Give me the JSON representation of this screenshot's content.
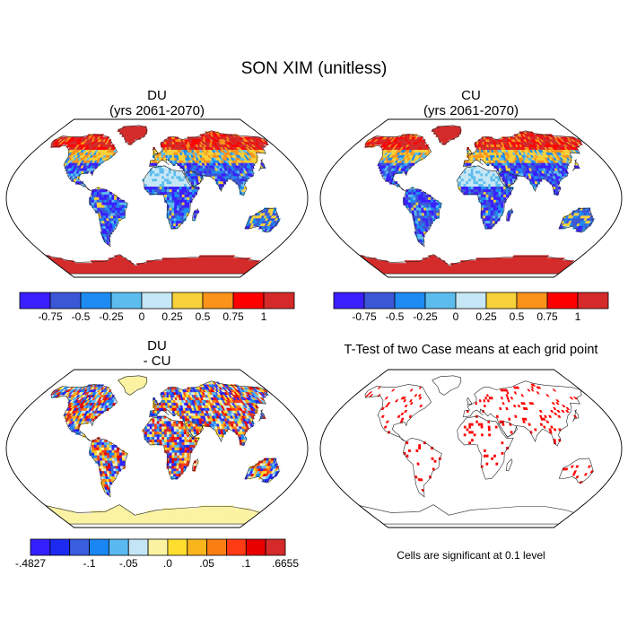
{
  "title": "SON XIM (unitless)",
  "panels": [
    {
      "id": "du",
      "title_line1": "DU",
      "title_line2": "(yrs 2061-2070)"
    },
    {
      "id": "cu",
      "title_line1": "CU",
      "title_line2": "(yrs 2061-2070)"
    },
    {
      "id": "diff",
      "title_line1": "DU",
      "title_line2": "- CU"
    },
    {
      "id": "ttest",
      "title_line1": "T-Test of two Case means at each grid point"
    }
  ],
  "colorbars": {
    "absolute": {
      "colors": [
        "#3a1fff",
        "#3b57d6",
        "#1d8bf2",
        "#5cbcee",
        "#c6e7f5",
        "#f7d13a",
        "#f9931a",
        "#ff0000",
        "#d42a2a"
      ],
      "labels": [
        "-0.75",
        "-0.5",
        "-0.25",
        "0",
        "0.25",
        "0.5",
        "0.75",
        "1"
      ]
    },
    "difference": {
      "colors": [
        "#3420ff",
        "#1c2af2",
        "#3a5ee0",
        "#1a86f3",
        "#5ab9f0",
        "#c4e5f6",
        "#fbf3a2",
        "#ffde2f",
        "#f9b51c",
        "#f97f13",
        "#ff3b13",
        "#e80000",
        "#d42a2a"
      ],
      "labels": [
        {
          "text": "-.4827",
          "slot": 0
        },
        {
          "text": "-.1",
          "slot": 3
        },
        {
          "text": "-.05",
          "slot": 5
        },
        {
          "text": ".0",
          "slot": 7
        },
        {
          "text": ".05",
          "slot": 9
        },
        {
          "text": ".1",
          "slot": 11
        },
        {
          "text": ".6655",
          "slot": 13
        }
      ]
    }
  },
  "ttest_note": "Cells are significant at 0.1 level",
  "colors": {
    "land_outline": "#222222",
    "significant": "#ff0000",
    "ocean": "#ffffff"
  }
}
